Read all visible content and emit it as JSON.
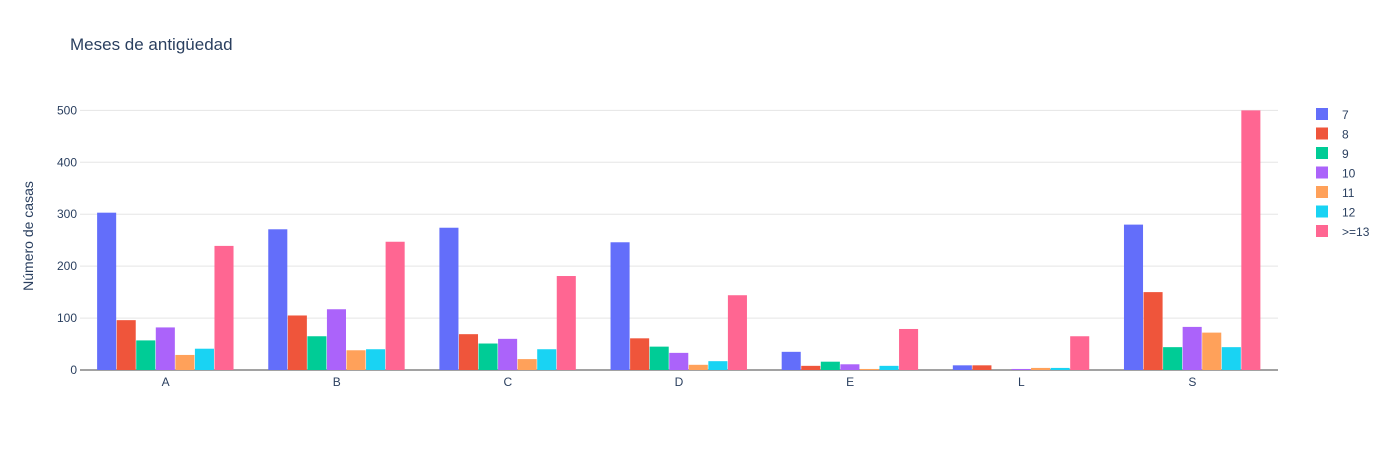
{
  "chart_data": {
    "type": "bar",
    "title": "Meses de antigüedad",
    "xlabel": "",
    "ylabel": "Número de casas",
    "categories": [
      "A",
      "B",
      "C",
      "D",
      "E",
      "L",
      "S"
    ],
    "ylim": [
      0,
      520
    ],
    "yticks": [
      0,
      100,
      200,
      300,
      400,
      500
    ],
    "grid": true,
    "legend_position": "right",
    "series": [
      {
        "name": "7",
        "color": "#636efa",
        "values": [
          303,
          271,
          274,
          246,
          35,
          9,
          280
        ]
      },
      {
        "name": "8",
        "color": "#ef553b",
        "values": [
          96,
          105,
          69,
          61,
          8,
          9,
          150
        ]
      },
      {
        "name": "9",
        "color": "#00cc96",
        "values": [
          57,
          65,
          51,
          45,
          16,
          0,
          44
        ]
      },
      {
        "name": "10",
        "color": "#ab63fa",
        "values": [
          82,
          117,
          60,
          33,
          11,
          2,
          83
        ]
      },
      {
        "name": "11",
        "color": "#ffa15a",
        "values": [
          29,
          38,
          21,
          10,
          2,
          4,
          72
        ]
      },
      {
        "name": "12",
        "color": "#19d3f3",
        "values": [
          41,
          40,
          40,
          17,
          8,
          4,
          44
        ]
      },
      {
        "name": ">=13",
        "color": "#ff6692",
        "values": [
          239,
          247,
          181,
          144,
          79,
          65,
          500
        ]
      }
    ]
  }
}
